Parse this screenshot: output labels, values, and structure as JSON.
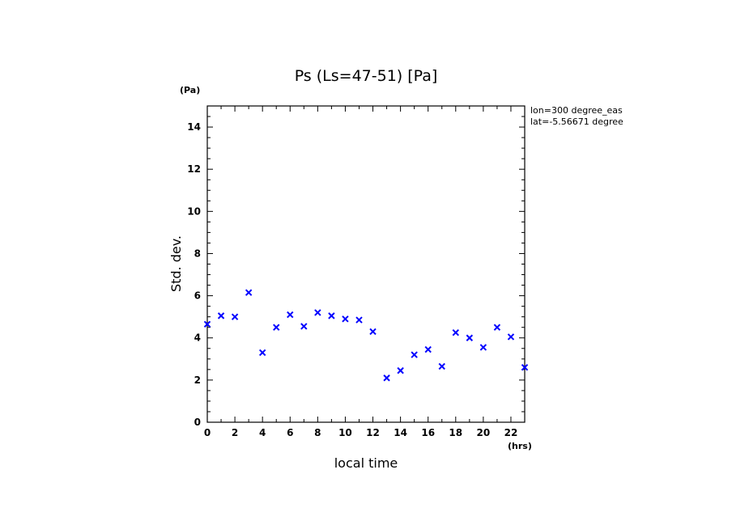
{
  "chart_data": {
    "type": "scatter",
    "title": "Ps (Ls=47-51) [Pa]",
    "xlabel": "local time",
    "ylabel": "Std. dev.",
    "x_unit": "(hrs)",
    "y_unit": "(Pa)",
    "xlim": [
      0,
      23
    ],
    "ylim": [
      0,
      15
    ],
    "x_ticks": [
      0,
      2,
      4,
      6,
      8,
      10,
      12,
      14,
      16,
      18,
      20,
      22
    ],
    "y_ticks": [
      0,
      2,
      4,
      6,
      8,
      10,
      12,
      14
    ],
    "grid": false,
    "marker": "x",
    "marker_color": "#0000ff",
    "annotations": [
      "lon=300 degree_eas",
      "lat=-5.56671 degree"
    ],
    "x": [
      0,
      1,
      2,
      3,
      4,
      5,
      6,
      7,
      8,
      9,
      10,
      11,
      12,
      13,
      14,
      15,
      16,
      17,
      18,
      19,
      20,
      21,
      22,
      23
    ],
    "y": [
      4.65,
      5.05,
      5.0,
      6.15,
      3.3,
      4.5,
      5.1,
      4.55,
      5.2,
      5.05,
      4.9,
      4.85,
      4.3,
      2.1,
      2.45,
      3.2,
      3.45,
      2.65,
      4.25,
      4.0,
      3.55,
      4.5,
      4.05,
      2.6
    ]
  }
}
